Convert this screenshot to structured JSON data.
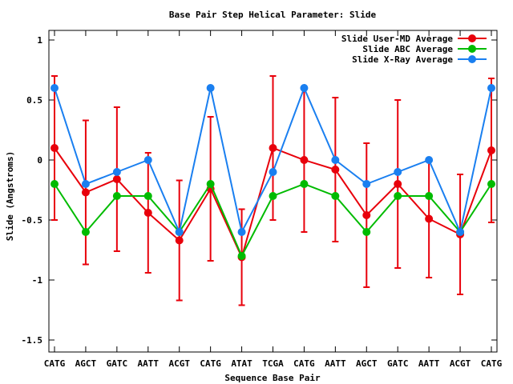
{
  "chart_data": {
    "type": "line",
    "title": "Base Pair Step Helical Parameter: Slide",
    "xlabel": "Sequence Base Pair",
    "ylabel": "Slide (Angstroms)",
    "ylim": [
      -1.6,
      1.08
    ],
    "yticks": [
      1,
      0.5,
      0,
      -0.5,
      -1,
      -1.5
    ],
    "ytick_labels": [
      "1",
      "0.5",
      "0",
      "-0.5",
      "-1",
      "-1.5"
    ],
    "categories": [
      "CATG",
      "AGCT",
      "GATC",
      "AATT",
      "ACGT",
      "CATG",
      "ATAT",
      "TCGA",
      "CATG",
      "AATT",
      "AGCT",
      "GATC",
      "AATT",
      "ACGT",
      "CATG"
    ],
    "grid": false,
    "legend_position": "top-right",
    "series": [
      {
        "name": "Slide User-MD Average",
        "color": "#e8000b",
        "values": [
          0.1,
          -0.27,
          -0.16,
          -0.44,
          -0.67,
          -0.24,
          -0.81,
          0.1,
          0.0,
          -0.08,
          -0.46,
          -0.2,
          -0.49,
          -0.62,
          0.08
        ],
        "error": [
          0.6,
          0.6,
          0.6,
          0.5,
          0.5,
          0.6,
          0.4,
          0.6,
          0.6,
          0.6,
          0.6,
          0.7,
          0.49,
          0.5,
          0.6
        ]
      },
      {
        "name": "Slide ABC Average",
        "color": "#00bb00",
        "values": [
          -0.2,
          -0.6,
          -0.3,
          -0.3,
          -0.6,
          -0.2,
          -0.8,
          -0.3,
          -0.2,
          -0.3,
          -0.6,
          -0.3,
          -0.3,
          -0.6,
          -0.2
        ]
      },
      {
        "name": "Slide X-Ray Average",
        "color": "#1a7ff0",
        "values": [
          0.6,
          -0.2,
          -0.1,
          0.0,
          -0.6,
          0.6,
          -0.6,
          -0.1,
          0.6,
          0.0,
          -0.2,
          -0.1,
          0.0,
          -0.6,
          0.6
        ]
      }
    ]
  }
}
